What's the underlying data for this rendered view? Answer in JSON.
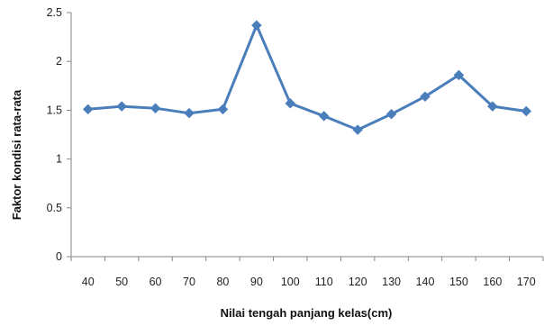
{
  "chart_data": {
    "type": "line",
    "title": "",
    "xlabel": "Nilai tengah panjang kelas(cm)",
    "ylabel": "Faktor kondisi rata-rata",
    "categories": [
      "40",
      "50",
      "60",
      "70",
      "80",
      "90",
      "100",
      "110",
      "120",
      "130",
      "140",
      "150",
      "160",
      "170"
    ],
    "series": [
      {
        "values": [
          1.51,
          1.54,
          1.52,
          1.47,
          1.51,
          2.37,
          1.57,
          1.44,
          1.3,
          1.46,
          1.64,
          1.86,
          1.54,
          1.49
        ],
        "color": "#4a7ebb",
        "marker": "diamond"
      }
    ],
    "ylim": [
      0,
      2.5
    ],
    "yticks": [
      "0",
      "0.5",
      "1",
      "1.5",
      "2",
      "2.5"
    ],
    "grid": false,
    "legend": "none"
  }
}
